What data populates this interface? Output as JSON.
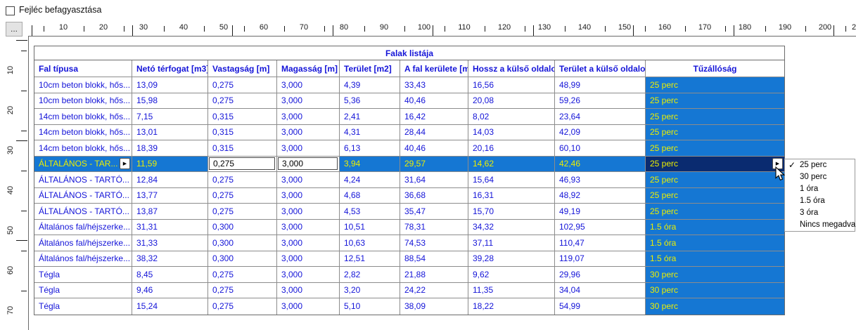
{
  "toolbar": {
    "freeze_header_label": "Fejléc befagyasztása",
    "freeze_header_checked": false
  },
  "ruler": {
    "corner_button_label": "...",
    "horizontal_labels": [
      "10",
      "20",
      "30",
      "40",
      "50",
      "60",
      "70",
      "80",
      "90",
      "100",
      "110",
      "120",
      "130",
      "140",
      "150",
      "160",
      "170",
      "180",
      "190",
      "200",
      "2"
    ],
    "vertical_labels": [
      "10",
      "20",
      "30",
      "40",
      "50",
      "60",
      "70"
    ]
  },
  "icons": {
    "popup_arrow": "▶",
    "check": "✓"
  },
  "table": {
    "title": "Falak listája",
    "columns": [
      "Fal típusa",
      "Netó térfogat [m3]",
      "Vastagság [m]",
      "Magasság [m]",
      "Terület [m2]",
      "A fal kerülete [m]",
      "Hossz a külső oldalon",
      "Terület a külső oldalon",
      "Tűzállóság"
    ],
    "selected_row_index": 5,
    "rows": [
      {
        "cells": [
          "10cm beton blokk, hős...",
          "13,09",
          "0,275",
          "3,000",
          "4,39",
          "33,43",
          "16,56",
          "48,99",
          "25 perc"
        ]
      },
      {
        "cells": [
          "10cm beton blokk, hős...",
          "15,98",
          "0,275",
          "3,000",
          "5,36",
          "40,46",
          "20,08",
          "59,26",
          "25 perc"
        ]
      },
      {
        "cells": [
          "14cm beton blokk, hős...",
          "7,15",
          "0,315",
          "3,000",
          "2,41",
          "16,42",
          "8,02",
          "23,64",
          "25 perc"
        ]
      },
      {
        "cells": [
          "14cm beton blokk, hős...",
          "13,01",
          "0,315",
          "3,000",
          "4,31",
          "28,44",
          "14,03",
          "42,09",
          "25 perc"
        ]
      },
      {
        "cells": [
          "14cm beton blokk, hős...",
          "18,39",
          "0,315",
          "3,000",
          "6,13",
          "40,46",
          "20,16",
          "60,10",
          "25 perc"
        ]
      },
      {
        "cells": [
          "ÁLTALÁNOS - TAR...",
          "11,59",
          "0,275",
          "3,000",
          "3,94",
          "29,57",
          "14,62",
          "42,46",
          "25 perc"
        ]
      },
      {
        "cells": [
          "ÁLTALÁNOS - TARTÓ...",
          "12,84",
          "0,275",
          "3,000",
          "4,24",
          "31,64",
          "15,64",
          "46,93",
          "25 perc"
        ]
      },
      {
        "cells": [
          "ÁLTALÁNOS - TARTÓ...",
          "13,77",
          "0,275",
          "3,000",
          "4,68",
          "36,68",
          "16,31",
          "48,92",
          "25 perc"
        ]
      },
      {
        "cells": [
          "ÁLTALÁNOS - TARTÓ...",
          "13,87",
          "0,275",
          "3,000",
          "4,53",
          "35,47",
          "15,70",
          "49,19",
          "25 perc"
        ]
      },
      {
        "cells": [
          "Általános fal/héjszerke...",
          "31,31",
          "0,300",
          "3,000",
          "10,51",
          "78,31",
          "34,32",
          "102,95",
          "1.5 óra"
        ]
      },
      {
        "cells": [
          "Általános fal/héjszerke...",
          "31,33",
          "0,300",
          "3,000",
          "10,63",
          "74,53",
          "37,11",
          "110,47",
          "1.5 óra"
        ]
      },
      {
        "cells": [
          "Általános fal/héjszerke...",
          "38,32",
          "0,300",
          "3,000",
          "12,51",
          "88,54",
          "39,28",
          "119,07",
          "1.5 óra"
        ]
      },
      {
        "cells": [
          "Tégla",
          "8,45",
          "0,275",
          "3,000",
          "2,82",
          "21,88",
          "9,62",
          "29,96",
          "30 perc"
        ]
      },
      {
        "cells": [
          "Tégla",
          "9,46",
          "0,275",
          "3,000",
          "3,20",
          "24,22",
          "11,35",
          "34,04",
          "30 perc"
        ]
      },
      {
        "cells": [
          "Tégla",
          "15,24",
          "0,275",
          "3,000",
          "5,10",
          "38,09",
          "18,22",
          "54,99",
          "30 perc"
        ]
      }
    ]
  },
  "dropdown": {
    "items": [
      {
        "label": "25 perc",
        "checked": true
      },
      {
        "label": "30 perc",
        "checked": false
      },
      {
        "label": "1 óra",
        "checked": false
      },
      {
        "label": "1.5 óra",
        "checked": false
      },
      {
        "label": "3 óra",
        "checked": false
      },
      {
        "label": "Nincs megadva",
        "checked": false
      }
    ]
  },
  "colors": {
    "fire_cell_blue": "#1577d3",
    "selected_fire_navy": "#0a2b70",
    "fire_text_yellow": "#ecee00",
    "table_text_blue": "#1414d8"
  }
}
